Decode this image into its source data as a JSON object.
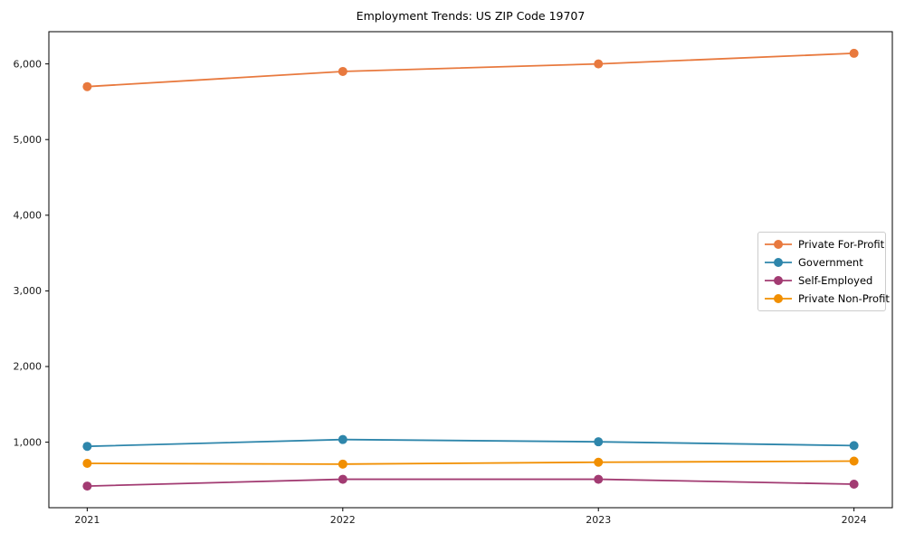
{
  "title": "Employment Trends: US ZIP Code 19707",
  "chart_data": {
    "type": "line",
    "title": "Employment Trends: US ZIP Code 19707",
    "xlabel": "",
    "ylabel": "",
    "x": [
      2021,
      2022,
      2023,
      2024
    ],
    "xtick_labels": [
      "2021",
      "2022",
      "2023",
      "2024"
    ],
    "yticks": [
      1000,
      2000,
      3000,
      4000,
      5000,
      6000
    ],
    "ytick_labels": [
      "1,000",
      "2,000",
      "3,000",
      "4,000",
      "5,000",
      "6,000"
    ],
    "xlim": [
      2020.85,
      2024.15
    ],
    "ylim": [
      134,
      6426
    ],
    "grid": false,
    "legend_position": "center right",
    "series": [
      {
        "name": "Private For-Profit",
        "color": "#E8793E",
        "values": [
          5700,
          5900,
          6000,
          6140
        ]
      },
      {
        "name": "Government",
        "color": "#2E86AB",
        "values": [
          945,
          1035,
          1005,
          955
        ]
      },
      {
        "name": "Self-Employed",
        "color": "#A23B72",
        "values": [
          420,
          510,
          510,
          445
        ]
      },
      {
        "name": "Private Non-Profit",
        "color": "#F18F01",
        "values": [
          720,
          710,
          735,
          750
        ]
      }
    ],
    "marker": "circle",
    "axis_color": "#000000",
    "tick_label_color": "#1a1a1a"
  }
}
